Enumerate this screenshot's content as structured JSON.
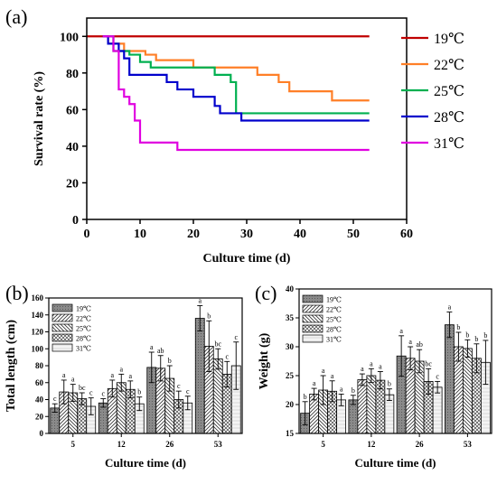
{
  "panels": {
    "a": "(a)",
    "b": "(b)",
    "c": "(c)"
  },
  "chart_data": [
    {
      "id": "a",
      "type": "line",
      "step": true,
      "xlabel": "Culture time (d)",
      "ylabel": "Survival rate (%)",
      "xlim": [
        0,
        60
      ],
      "ylim": [
        0,
        110
      ],
      "xticks": [
        0,
        10,
        20,
        30,
        40,
        50,
        60
      ],
      "yticks": [
        0,
        20,
        40,
        60,
        80,
        100
      ],
      "legend_position": "right",
      "series": [
        {
          "name": "19℃",
          "color": "#c00000",
          "x": [
            0,
            53
          ],
          "y": [
            100,
            100
          ]
        },
        {
          "name": "22℃",
          "color": "#ff7f27",
          "x": [
            3,
            4,
            7,
            11,
            13,
            20,
            32,
            36,
            38,
            46,
            53
          ],
          "y": [
            100,
            96,
            92,
            90,
            87,
            83,
            79,
            75,
            70,
            65,
            65
          ]
        },
        {
          "name": "25℃",
          "color": "#00b050",
          "x": [
            3,
            5,
            8,
            10,
            12,
            24,
            27,
            28,
            53
          ],
          "y": [
            100,
            92,
            90,
            86,
            83,
            79,
            75,
            58,
            58
          ]
        },
        {
          "name": "28℃",
          "color": "#0000cc",
          "x": [
            3,
            4,
            6,
            7,
            8,
            15,
            17,
            20,
            24,
            25,
            29,
            53
          ],
          "y": [
            100,
            96,
            92,
            88,
            79,
            75,
            71,
            67,
            62,
            58,
            54,
            54
          ]
        },
        {
          "name": "31℃",
          "color": "#e000e0",
          "x": [
            3,
            5,
            6,
            7,
            8,
            9,
            10,
            17,
            53
          ],
          "y": [
            100,
            92,
            71,
            67,
            63,
            54,
            42,
            38,
            38
          ]
        }
      ]
    },
    {
      "id": "b",
      "type": "bar",
      "xlabel": "Culture time (d)",
      "ylabel": "Total length (cm)",
      "ylim": [
        0,
        160
      ],
      "yticks": [
        0,
        20,
        40,
        60,
        80,
        100,
        120,
        140,
        160
      ],
      "categories": [
        "5",
        "12",
        "26",
        "53"
      ],
      "legend_position": "top-left",
      "series": [
        {
          "name": "19℃",
          "values": [
            30,
            36,
            78,
            136
          ],
          "errors": [
            5,
            5,
            18,
            15
          ],
          "labels": [
            "c",
            "c",
            "a",
            "a"
          ]
        },
        {
          "name": "22℃",
          "values": [
            49,
            53,
            77,
            103
          ],
          "errors": [
            14,
            10,
            15,
            30
          ],
          "labels": [
            "a",
            "a",
            "ab",
            "b"
          ]
        },
        {
          "name": "25℃",
          "values": [
            48,
            60,
            65,
            88
          ],
          "errors": [
            10,
            10,
            15,
            12
          ],
          "labels": [
            "a",
            "a",
            "b",
            "bc"
          ]
        },
        {
          "name": "28℃",
          "values": [
            41,
            52,
            40,
            70
          ],
          "errors": [
            7,
            10,
            10,
            15
          ],
          "labels": [
            "bc",
            "a",
            "c",
            "c"
          ]
        },
        {
          "name": "31℃",
          "values": [
            32,
            35,
            36,
            80
          ],
          "errors": [
            10,
            8,
            8,
            28
          ],
          "labels": [
            "c",
            "b",
            "c",
            "c"
          ]
        }
      ]
    },
    {
      "id": "c",
      "type": "bar",
      "xlabel": "Culture time (d)",
      "ylabel": "Weight (g)",
      "ylim": [
        15,
        40
      ],
      "yticks": [
        15,
        20,
        25,
        30,
        35,
        40
      ],
      "categories": [
        "5",
        "12",
        "26",
        "53"
      ],
      "legend_position": "top-left",
      "series": [
        {
          "name": "19℃",
          "values": [
            18.5,
            20.8,
            28.4,
            33.8
          ],
          "errors": [
            2.0,
            0.8,
            3.5,
            2.2
          ],
          "labels": [
            "b",
            "b",
            "a",
            "a"
          ]
        },
        {
          "name": "22℃",
          "values": [
            21.8,
            24.3,
            28.0,
            30.0
          ],
          "errors": [
            1.0,
            1.0,
            2.0,
            2.5
          ],
          "labels": [
            "a",
            "a",
            "a",
            "b"
          ]
        },
        {
          "name": "25℃",
          "values": [
            22.5,
            25.0,
            27.5,
            29.7
          ],
          "errors": [
            2.5,
            1.2,
            2.0,
            1.5
          ],
          "labels": [
            "a",
            "a",
            "ab",
            "b"
          ]
        },
        {
          "name": "28℃",
          "values": [
            22.3,
            24.2,
            24.0,
            28.0
          ],
          "errors": [
            1.8,
            1.5,
            2.2,
            2.5
          ],
          "labels": [
            "a",
            "a",
            "bc",
            "b"
          ]
        },
        {
          "name": "31℃",
          "values": [
            20.8,
            21.7,
            23.0,
            27.3
          ],
          "errors": [
            1.0,
            1.0,
            1.0,
            3.8
          ],
          "labels": [
            "a",
            "b",
            "c",
            "b"
          ]
        }
      ]
    }
  ]
}
